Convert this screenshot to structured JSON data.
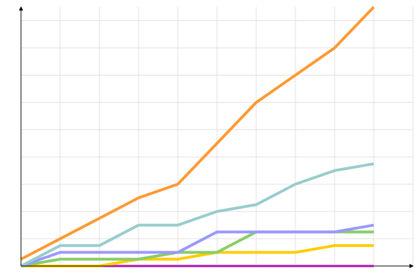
{
  "chart_data": {
    "type": "line",
    "x": [
      0,
      1,
      2,
      3,
      4,
      5,
      6,
      7,
      8,
      9
    ],
    "xlim": [
      0,
      10
    ],
    "xticks": [
      0,
      1,
      2,
      3,
      4,
      5,
      6,
      7,
      8,
      9,
      10
    ],
    "ylim": [
      0,
      9.5
    ],
    "yticks": [
      0,
      1,
      2,
      3,
      4,
      5,
      6,
      7,
      8,
      9
    ],
    "grid": true,
    "series": [
      {
        "color": "#ff66ff",
        "values": [
          0,
          0,
          0,
          0,
          0,
          0,
          0,
          0,
          0,
          0
        ]
      },
      {
        "color": "#ffcc00",
        "values": [
          0,
          0,
          0,
          0.25,
          0.25,
          0.5,
          0.5,
          0.5,
          0.75,
          0.75
        ]
      },
      {
        "color": "#88cc66",
        "values": [
          0,
          0.25,
          0.25,
          0.25,
          0.5,
          0.5,
          1.25,
          1.25,
          1.25,
          1.25
        ]
      },
      {
        "color": "#9999ff",
        "values": [
          0,
          0.5,
          0.5,
          0.5,
          0.5,
          1.25,
          1.25,
          1.25,
          1.25,
          1.5
        ]
      },
      {
        "color": "#99cccc",
        "values": [
          0,
          0.75,
          0.75,
          1.5,
          1.5,
          2,
          2.25,
          3,
          3.5,
          3.75
        ]
      },
      {
        "color": "#ff9933",
        "values": [
          0.25,
          1,
          1.75,
          2.5,
          3,
          4.5,
          6,
          7,
          8,
          9.5
        ]
      }
    ]
  }
}
